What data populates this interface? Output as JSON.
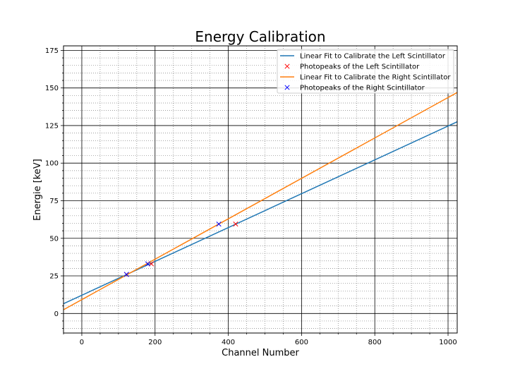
{
  "chart_data": {
    "type": "line",
    "title": "Energy Calibration",
    "xlabel": "Channel Number",
    "ylabel": "Energie [keV]",
    "xlim": [
      -50,
      1025
    ],
    "ylim": [
      -13,
      178
    ],
    "xticks": [
      0,
      200,
      400,
      600,
      800,
      1000
    ],
    "yticks": [
      0,
      25,
      50,
      75,
      100,
      125,
      150,
      175
    ],
    "grid": true,
    "minor_grid": true,
    "legend_position": "top-right",
    "series": [
      {
        "name": "Linear Fit to Calibrate the Left Scintillator",
        "kind": "line",
        "color": "#1f77b4",
        "x": [
          -50,
          1025
        ],
        "y": [
          6.5,
          127.5
        ]
      },
      {
        "name": "Photopeaks of the Left Scintillator",
        "kind": "marker",
        "marker": "x",
        "color": "#ff0000",
        "x": [
          122,
          190,
          420
        ],
        "y": [
          26,
          33,
          59.5
        ]
      },
      {
        "name": "Linear Fit to Calibrate the Right Scintillator",
        "kind": "line",
        "color": "#ff7f0e",
        "x": [
          -50,
          1025
        ],
        "y": [
          2.5,
          147
        ]
      },
      {
        "name": "Photopeaks of the Right Scintillator",
        "kind": "marker",
        "marker": "x",
        "color": "#0000ff",
        "x": [
          122,
          180,
          374
        ],
        "y": [
          26,
          33,
          59.5
        ]
      }
    ]
  }
}
